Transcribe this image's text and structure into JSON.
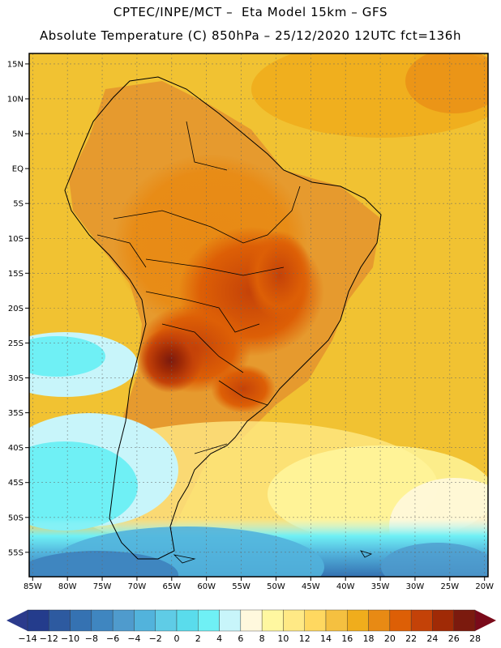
{
  "header": {
    "line1": "CPTEC/INPE/MCT –  Eta Model 15km – GFS",
    "line2": "Absolute Temperature (C) 850hPa – 25/12/2020 12UTC fct=136h"
  },
  "map": {
    "lat_ticks": [
      "15N",
      "10N",
      "5N",
      "EQ",
      "5S",
      "10S",
      "15S",
      "20S",
      "25S",
      "30S",
      "35S",
      "40S",
      "45S",
      "50S",
      "55S"
    ],
    "lon_ticks": [
      "85W",
      "80W",
      "75W",
      "70W",
      "65W",
      "60W",
      "55W",
      "50W",
      "45W",
      "40W",
      "35W",
      "30W",
      "25W",
      "20W"
    ],
    "ocean_color": "#f1c232",
    "land_color": "#e69a2e"
  },
  "colorbar": {
    "labels": [
      "-14",
      "-12",
      "-10",
      "-8",
      "-6",
      "-4",
      "-2",
      "0",
      "2",
      "4",
      "6",
      "8",
      "10",
      "12",
      "14",
      "16",
      "18",
      "20",
      "22",
      "24",
      "26",
      "28"
    ],
    "colors": [
      "#243c8c",
      "#2d5aa0",
      "#3572b2",
      "#3f86c0",
      "#4f9bcd",
      "#52b3dc",
      "#5fcce6",
      "#5adcec",
      "#6ff0f5",
      "#c8f5fa",
      "#fff8dd",
      "#fff7a0",
      "#ffe985",
      "#ffd860",
      "#f5c040",
      "#f0ad1c",
      "#e88a14",
      "#dd5f06",
      "#c44208",
      "#a02a06",
      "#7b1a0e"
    ],
    "low_arrow_color": "#2b3a8c",
    "high_arrow_color": "#7a0a1a"
  }
}
